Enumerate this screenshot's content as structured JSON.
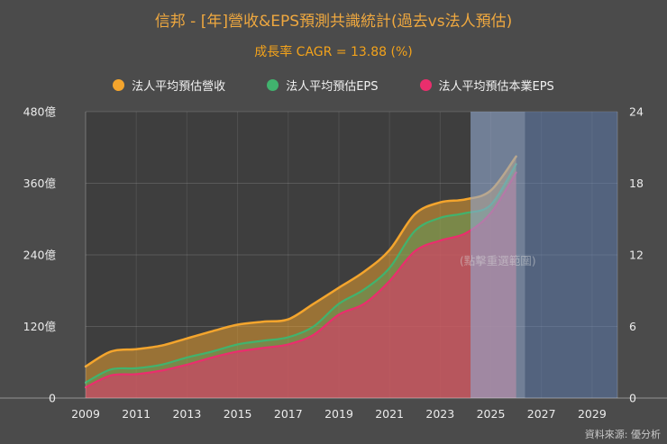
{
  "page": {
    "title": "信邦 - [年]營收&EPS預測共識統計(過去vs法人預估)",
    "subtitle": "成長率 CAGR = 13.88 (%)",
    "source_note": "資料來源: 優分析"
  },
  "legend": {
    "items": [
      {
        "label": "法人平均預估營收",
        "color": "#f4a52d"
      },
      {
        "label": "法人平均預估EPS",
        "color": "#41b36e"
      },
      {
        "label": "法人平均預估本業EPS",
        "color": "#ea2e6d"
      }
    ]
  },
  "chart_data": {
    "type": "area",
    "title": "信邦 - [年]營收&EPS預測共識統計(過去vs法人預估)",
    "subtitle": "成長率 CAGR = 13.88 (%)",
    "x": [
      2009,
      2010,
      2011,
      2012,
      2013,
      2014,
      2015,
      2016,
      2017,
      2018,
      2019,
      2020,
      2021,
      2022,
      2023,
      2024,
      2025,
      2026
    ],
    "series": [
      {
        "name": "法人平均預估營收",
        "axis": "left",
        "color": "#f4a52d",
        "fill_opacity": 0.5,
        "line_width": 2.5,
        "values": [
          53,
          78,
          82,
          88,
          100,
          112,
          123,
          128,
          132,
          158,
          185,
          212,
          248,
          308,
          328,
          333,
          348,
          405
        ]
      },
      {
        "name": "法人平均預估EPS",
        "axis": "right",
        "color": "#41b36e",
        "fill_opacity": 0.35,
        "line_width": 2.2,
        "values": [
          1.3,
          2.4,
          2.5,
          2.8,
          3.4,
          3.9,
          4.5,
          4.8,
          5.1,
          6.0,
          7.9,
          9.1,
          10.9,
          14.0,
          15.1,
          15.5,
          16.2,
          19.6
        ]
      },
      {
        "name": "法人平均預估本業EPS",
        "axis": "right",
        "color": "#ea2e6d",
        "fill_opacity": 0.55,
        "line_width": 2.2,
        "values": [
          0.9,
          1.9,
          2.0,
          2.3,
          2.8,
          3.4,
          3.9,
          4.2,
          4.5,
          5.3,
          7.0,
          7.9,
          9.8,
          12.3,
          13.2,
          13.8,
          15.5,
          18.9
        ]
      }
    ],
    "left_axis": {
      "min": 0,
      "max": 480,
      "ticks": [
        0,
        120,
        240,
        360,
        480
      ],
      "tick_labels": [
        "0",
        "120億",
        "240億",
        "360億",
        "480億"
      ]
    },
    "right_axis": {
      "min": 0,
      "max": 24,
      "ticks": [
        0,
        6,
        12,
        18,
        24
      ],
      "tick_labels": [
        "0",
        "6",
        "12",
        "18",
        "24"
      ]
    },
    "x_axis": {
      "min": 2009,
      "max": 2030,
      "ticks": [
        2009,
        2011,
        2013,
        2015,
        2017,
        2019,
        2021,
        2023,
        2025,
        2027,
        2029
      ]
    },
    "selection": {
      "start": 2024.2,
      "mid": 2026.35,
      "end": 2030,
      "label": "(點擊重選範圍)",
      "band_color": "rgba(104,136,190,0.5)",
      "highlight_color": "rgba(222,226,236,0.22)",
      "label_color": "rgba(220,220,220,0.5)"
    },
    "grid": true,
    "legend_position": "top",
    "colors": {
      "page_bg": "#4b4b4b",
      "plot_bg": "#3e3e3e",
      "grid_h": "rgba(255,255,255,0.14)",
      "grid_v": "rgba(255,255,255,0.09)",
      "axis_line": "rgba(255,255,255,0.4)",
      "spine": "rgba(255,255,255,0.2)",
      "tick_text": "#ececec"
    }
  }
}
